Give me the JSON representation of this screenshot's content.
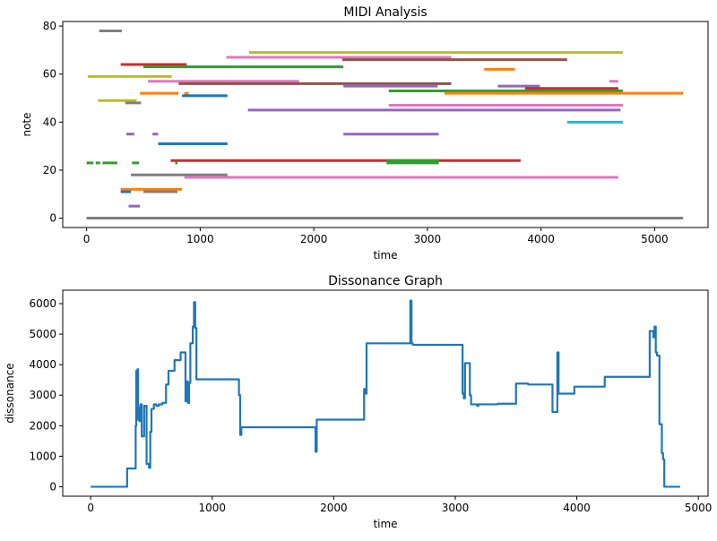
{
  "colors": {
    "tab_blue": "#1f77b4",
    "tab_orange": "#ff7f0e",
    "tab_green": "#2ca02c",
    "tab_red": "#d62728",
    "tab_purple": "#9467bd",
    "tab_brown": "#8c564b",
    "tab_pink": "#e377c2",
    "tab_gray": "#7f7f7f",
    "tab_olive": "#bcbd22",
    "tab_cyan": "#17becf"
  },
  "chart_data": [
    {
      "type": "line",
      "title": "MIDI Analysis",
      "xlabel": "time",
      "ylabel": "note",
      "xlim": [
        -210,
        5470
      ],
      "ylim": [
        -3.9,
        81.9
      ],
      "xticks": [
        0,
        1000,
        2000,
        3000,
        4000,
        5000
      ],
      "yticks": [
        0,
        20,
        40,
        60,
        80
      ],
      "grid": false,
      "segments": [
        {
          "x0": 0,
          "x1": 5250,
          "y": 0,
          "color": "#7f7f7f"
        },
        {
          "x0": 110,
          "x1": 310,
          "y": 78,
          "color": "#7f7f7f"
        },
        {
          "x0": 300,
          "x1": 880,
          "y": 64,
          "color": "#d62728"
        },
        {
          "x0": 500,
          "x1": 2260,
          "y": 63,
          "color": "#2ca02c"
        },
        {
          "x0": 1230,
          "x1": 3210,
          "y": 67,
          "color": "#e377c2"
        },
        {
          "x0": 2250,
          "x1": 4230,
          "y": 66,
          "color": "#8c564b"
        },
        {
          "x0": 1430,
          "x1": 4720,
          "y": 69,
          "color": "#bcbd22"
        },
        {
          "x0": 3500,
          "x1": 3770,
          "y": 62,
          "color": "#ff7f0e"
        },
        {
          "x0": 10,
          "x1": 750,
          "y": 59,
          "color": "#bcbd22"
        },
        {
          "x0": 540,
          "x1": 1870,
          "y": 57,
          "color": "#e377c2"
        },
        {
          "x0": 810,
          "x1": 3210,
          "y": 56,
          "color": "#8c564b"
        },
        {
          "x0": 2260,
          "x1": 3090,
          "y": 55,
          "color": "#9467bd"
        },
        {
          "x0": 3620,
          "x1": 3990,
          "y": 55,
          "color": "#9467bd"
        },
        {
          "x0": 4600,
          "x1": 4680,
          "y": 57,
          "color": "#e377c2"
        },
        {
          "x0": 3860,
          "x1": 4680,
          "y": 54,
          "color": "#d62728"
        },
        {
          "x0": 2660,
          "x1": 4720,
          "y": 53,
          "color": "#2ca02c"
        },
        {
          "x0": 3150,
          "x1": 5250,
          "y": 52,
          "color": "#ff7f0e"
        },
        {
          "x0": 470,
          "x1": 810,
          "y": 52,
          "color": "#ff7f0e"
        },
        {
          "x0": 860,
          "x1": 900,
          "y": 52,
          "color": "#ff7f0e"
        },
        {
          "x0": 840,
          "x1": 1240,
          "y": 51,
          "color": "#1f77b4"
        },
        {
          "x0": 100,
          "x1": 440,
          "y": 49,
          "color": "#bcbd22"
        },
        {
          "x0": 340,
          "x1": 480,
          "y": 48,
          "color": "#7f7f7f"
        },
        {
          "x0": 2660,
          "x1": 4720,
          "y": 47,
          "color": "#e377c2"
        },
        {
          "x0": 1420,
          "x1": 4700,
          "y": 45,
          "color": "#9467bd"
        },
        {
          "x0": 4230,
          "x1": 4720,
          "y": 40,
          "color": "#17becf"
        },
        {
          "x0": 350,
          "x1": 420,
          "y": 35,
          "color": "#9467bd"
        },
        {
          "x0": 580,
          "x1": 630,
          "y": 35,
          "color": "#9467bd"
        },
        {
          "x0": 2260,
          "x1": 3100,
          "y": 35,
          "color": "#9467bd"
        },
        {
          "x0": 630,
          "x1": 1240,
          "y": 31,
          "color": "#1f77b4"
        },
        {
          "x0": 740,
          "x1": 3820,
          "y": 24,
          "color": "#d62728"
        },
        {
          "x0": 2640,
          "x1": 3100,
          "y": 24,
          "color": "#2ca02c"
        },
        {
          "x0": 2640,
          "x1": 3100,
          "y": 23,
          "color": "#2ca02c"
        },
        {
          "x0": 0,
          "x1": 60,
          "y": 23,
          "color": "#2ca02c"
        },
        {
          "x0": 80,
          "x1": 120,
          "y": 23,
          "color": "#2ca02c"
        },
        {
          "x0": 140,
          "x1": 270,
          "y": 23,
          "color": "#2ca02c"
        },
        {
          "x0": 400,
          "x1": 460,
          "y": 23,
          "color": "#2ca02c"
        },
        {
          "x0": 780,
          "x1": 800,
          "y": 23,
          "color": "#2ca02c"
        },
        {
          "x0": 390,
          "x1": 1240,
          "y": 18,
          "color": "#7f7f7f"
        },
        {
          "x0": 860,
          "x1": 4680,
          "y": 17,
          "color": "#e377c2"
        },
        {
          "x0": 300,
          "x1": 840,
          "y": 12,
          "color": "#ff7f0e"
        },
        {
          "x0": 300,
          "x1": 390,
          "y": 11,
          "color": "#1f77b4"
        },
        {
          "x0": 500,
          "x1": 800,
          "y": 11,
          "color": "#7f7f7f"
        },
        {
          "x0": 370,
          "x1": 470,
          "y": 5,
          "color": "#9467bd"
        }
      ]
    },
    {
      "type": "line",
      "title": "Dissonance Graph",
      "xlabel": "time",
      "ylabel": "dissonance",
      "xlim": [
        -230,
        5080
      ],
      "ylim": [
        -310,
        6440
      ],
      "xticks": [
        0,
        1000,
        2000,
        3000,
        4000,
        5000
      ],
      "yticks": [
        0,
        1000,
        2000,
        3000,
        4000,
        5000,
        6000
      ],
      "grid": false,
      "series": [
        {
          "color": "#1f77b4",
          "x": [
            0,
            300,
            300,
            370,
            370,
            375,
            375,
            380,
            385,
            385,
            390,
            390,
            395,
            395,
            400,
            400,
            410,
            410,
            420,
            420,
            440,
            440,
            460,
            460,
            480,
            480,
            490,
            490,
            500,
            500,
            520,
            520,
            540,
            540,
            560,
            560,
            590,
            590,
            620,
            620,
            640,
            640,
            690,
            690,
            740,
            740,
            780,
            780,
            790,
            790,
            800,
            800,
            810,
            810,
            820,
            820,
            840,
            840,
            850,
            850,
            860,
            860,
            870,
            870,
            890,
            890,
            1220,
            1220,
            1230,
            1230,
            1240,
            1240,
            1850,
            1850,
            1860,
            1860,
            2250,
            2250,
            2260,
            2260,
            2270,
            2270,
            2280,
            2280,
            2630,
            2630,
            2640,
            2640,
            2650,
            2650,
            3060,
            3060,
            3070,
            3070,
            3080,
            3080,
            3120,
            3120,
            3130,
            3130,
            3180,
            3180,
            3190,
            3190,
            3350,
            3350,
            3500,
            3500,
            3600,
            3600,
            3670,
            3670,
            3800,
            3800,
            3840,
            3840,
            3850,
            3850,
            3860,
            3860,
            3980,
            3980,
            4230,
            4230,
            4600,
            4600,
            4630,
            4630,
            4640,
            4640,
            4650,
            4650,
            4660,
            4660,
            4680,
            4680,
            4700,
            4700,
            4710,
            4710,
            4720,
            4720,
            4850
          ],
          "y": [
            0,
            0,
            600,
            600,
            2000,
            2000,
            3800,
            3800,
            3200,
            3850,
            3850,
            2200,
            2200,
            2600,
            2600,
            2150,
            2150,
            2700,
            2700,
            1650,
            1650,
            2650,
            2650,
            750,
            750,
            620,
            620,
            1800,
            1800,
            2550,
            2550,
            2700,
            2700,
            2650,
            2650,
            2700,
            2700,
            2750,
            2750,
            3350,
            3350,
            3800,
            3800,
            4150,
            4150,
            4400,
            4400,
            2800,
            2800,
            3450,
            3450,
            2750,
            2750,
            3400,
            3400,
            4700,
            4700,
            5250,
            5250,
            6050,
            6050,
            5200,
            5200,
            3520,
            3520,
            3520,
            3520,
            3000,
            3000,
            1700,
            1700,
            1950,
            1950,
            1150,
            1150,
            2200,
            2200,
            3200,
            3200,
            3050,
            3050,
            4700,
            4700,
            4700,
            4700,
            6100,
            6100,
            4700,
            4700,
            4650,
            4650,
            3050,
            3050,
            2900,
            2900,
            4050,
            4050,
            3000,
            3000,
            2700,
            2700,
            2650,
            2650,
            2700,
            2700,
            2720,
            2720,
            3380,
            3380,
            3350,
            3350,
            3350,
            3350,
            2450,
            2450,
            4400,
            4400,
            3050,
            3050,
            3050,
            3050,
            3280,
            3280,
            3600,
            3600,
            5100,
            5100,
            4900,
            4900,
            5250,
            5250,
            4400,
            4400,
            4300,
            4300,
            2050,
            2050,
            1100,
            1100,
            900,
            900,
            0,
            0
          ]
        }
      ]
    }
  ]
}
